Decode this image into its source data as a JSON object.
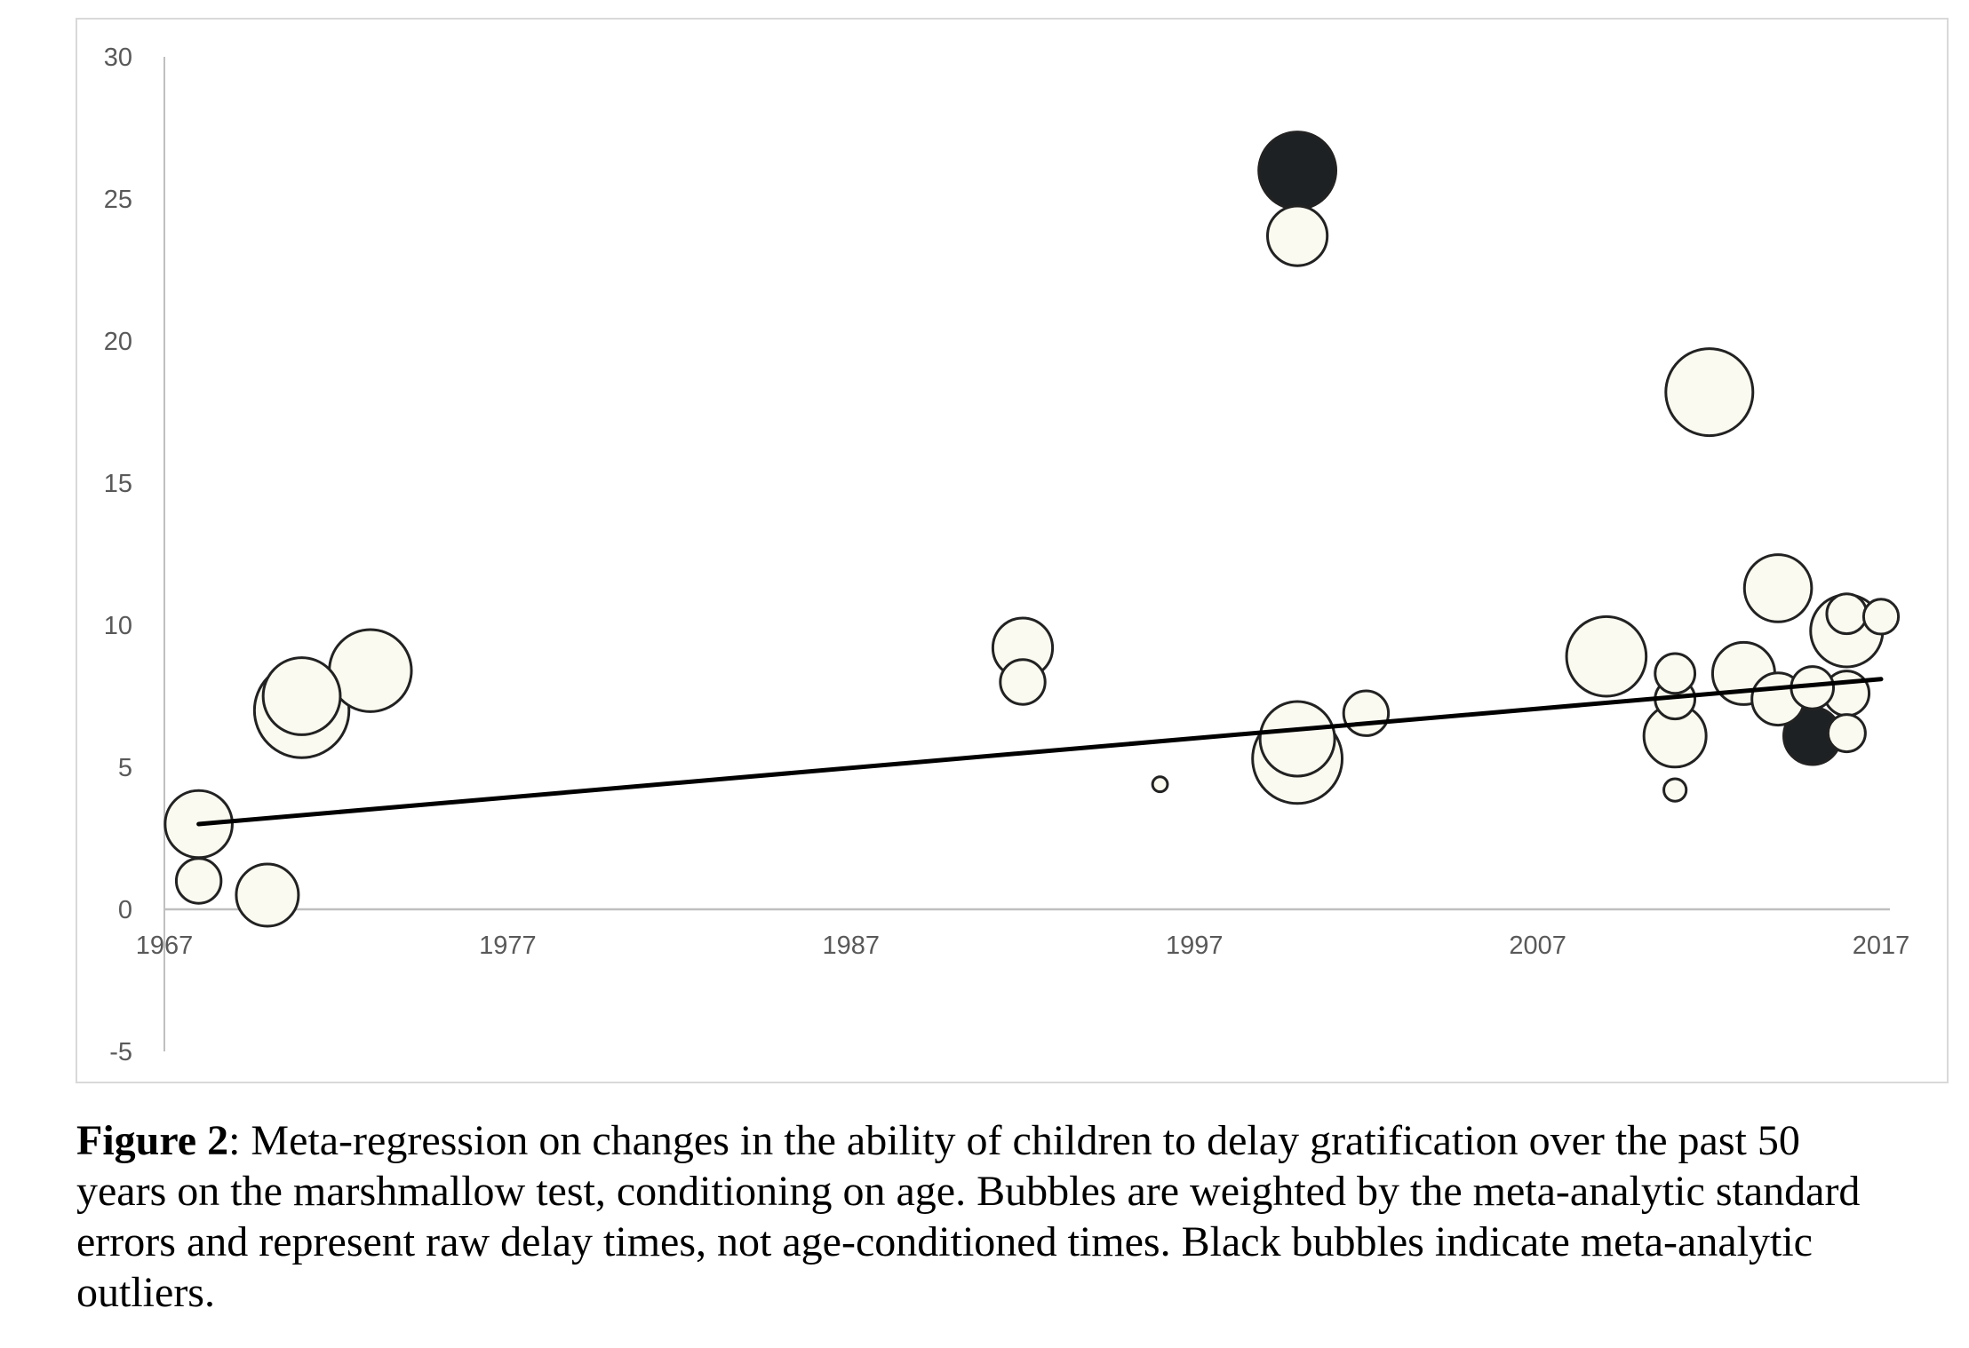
{
  "chart_data": {
    "type": "scatter",
    "title": "",
    "xlabel": "",
    "ylabel": "",
    "xlim": [
      1967,
      2017
    ],
    "ylim": [
      -5,
      30
    ],
    "x_ticks": [
      "1967",
      "1977",
      "1987",
      "1997",
      "2007",
      "2017"
    ],
    "y_ticks": [
      "30",
      "25",
      "20",
      "15",
      "10",
      "5",
      "0",
      "-5"
    ],
    "grid": false,
    "legend": "none",
    "colors": {
      "bubble": "#fbfaf0",
      "outlier": "#1e2124",
      "outline": "#222222",
      "line": "#000000",
      "axis": "#bfbfbf"
    },
    "series": [
      {
        "type": "bubble",
        "points": [
          {
            "x": 1968,
            "y": 1.0,
            "size": 1.8,
            "outlier": false
          },
          {
            "x": 1968,
            "y": 3.0,
            "size": 2.7,
            "outlier": false
          },
          {
            "x": 1970,
            "y": 0.5,
            "size": 2.5,
            "outlier": false
          },
          {
            "x": 1971,
            "y": 7.0,
            "size": 3.8,
            "outlier": false
          },
          {
            "x": 1971,
            "y": 7.5,
            "size": 3.1,
            "outlier": false
          },
          {
            "x": 1973,
            "y": 8.4,
            "size": 3.3,
            "outlier": false
          },
          {
            "x": 1992,
            "y": 8.0,
            "size": 1.8,
            "outlier": false
          },
          {
            "x": 1992,
            "y": 9.2,
            "size": 2.4,
            "outlier": false
          },
          {
            "x": 1996,
            "y": 4.4,
            "size": 0.6,
            "outlier": false
          },
          {
            "x": 2000,
            "y": 23.7,
            "size": 2.4,
            "outlier": false
          },
          {
            "x": 2000,
            "y": 26.0,
            "size": 3.1,
            "outlier": true
          },
          {
            "x": 2000,
            "y": 5.3,
            "size": 3.6,
            "outlier": false
          },
          {
            "x": 2000,
            "y": 6.0,
            "size": 3.0,
            "outlier": false
          },
          {
            "x": 2002,
            "y": 6.9,
            "size": 1.8,
            "outlier": false
          },
          {
            "x": 2009,
            "y": 8.9,
            "size": 3.2,
            "outlier": false
          },
          {
            "x": 2011,
            "y": 4.2,
            "size": 0.9,
            "outlier": false
          },
          {
            "x": 2011,
            "y": 6.1,
            "size": 2.5,
            "outlier": false
          },
          {
            "x": 2011,
            "y": 7.4,
            "size": 1.6,
            "outlier": false
          },
          {
            "x": 2011,
            "y": 8.3,
            "size": 1.6,
            "outlier": false
          },
          {
            "x": 2012,
            "y": 18.2,
            "size": 3.5,
            "outlier": false
          },
          {
            "x": 2013,
            "y": 8.3,
            "size": 2.5,
            "outlier": false
          },
          {
            "x": 2014,
            "y": 7.4,
            "size": 2.1,
            "outlier": false
          },
          {
            "x": 2014,
            "y": 11.3,
            "size": 2.7,
            "outlier": false
          },
          {
            "x": 2015,
            "y": 7.8,
            "size": 1.7,
            "outlier": false
          },
          {
            "x": 2015,
            "y": 6.1,
            "size": 2.3,
            "outlier": true
          },
          {
            "x": 2016,
            "y": 6.2,
            "size": 1.5,
            "outlier": false
          },
          {
            "x": 2016,
            "y": 7.6,
            "size": 1.8,
            "outlier": false
          },
          {
            "x": 2016,
            "y": 9.8,
            "size": 2.9,
            "outlier": false
          },
          {
            "x": 2016,
            "y": 10.4,
            "size": 1.6,
            "outlier": false
          },
          {
            "x": 2017,
            "y": 10.3,
            "size": 1.4,
            "outlier": false
          }
        ]
      },
      {
        "type": "line",
        "points": [
          {
            "x": 1968,
            "y": 3.0
          },
          {
            "x": 2017,
            "y": 8.1
          }
        ]
      }
    ]
  },
  "caption": {
    "label": "Figure 2",
    "text": ": Meta-regression on changes in the ability of children to delay gratification over the past 50 years on the marshmallow test, conditioning on age. Bubbles are weighted by the meta-analytic standard errors and represent raw delay times, not age-conditioned times. Black bubbles indicate meta-analytic outliers."
  }
}
